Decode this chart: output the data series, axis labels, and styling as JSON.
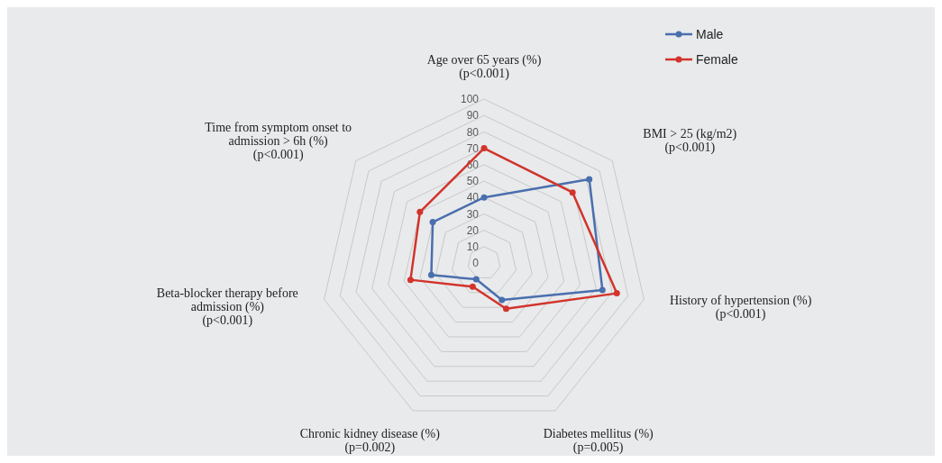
{
  "chart_data": {
    "type": "radar",
    "categories": [
      "Age over 65 years (%)\n(p<0.001)",
      "BMI > 25 (kg/m2)\n(p<0.001)",
      "History of hypertension (%)\n(p<0.001)",
      "Diabetes mellitus (%)\n(p=0.005)",
      "Chronic kidney disease (%)\n(p=0.002)",
      "Beta-blocker therapy before\nadmission (%)\n(p<0.001)",
      "Time from symptom onset to\nadmission > 6h (%)\n(p<0.001)"
    ],
    "series": [
      {
        "name": "Male",
        "color": "#4a6fae",
        "values": [
          40,
          82,
          74,
          25,
          11,
          33,
          40
        ]
      },
      {
        "name": "Female",
        "color": "#d2342b",
        "values": [
          70,
          69,
          83,
          31,
          16,
          46,
          50
        ]
      }
    ],
    "ylim": [
      0,
      100
    ],
    "yticks": [
      0,
      10,
      20,
      30,
      40,
      50,
      60,
      70,
      80,
      90,
      100
    ],
    "grid": true,
    "legend": "top right",
    "marker": "circle"
  }
}
